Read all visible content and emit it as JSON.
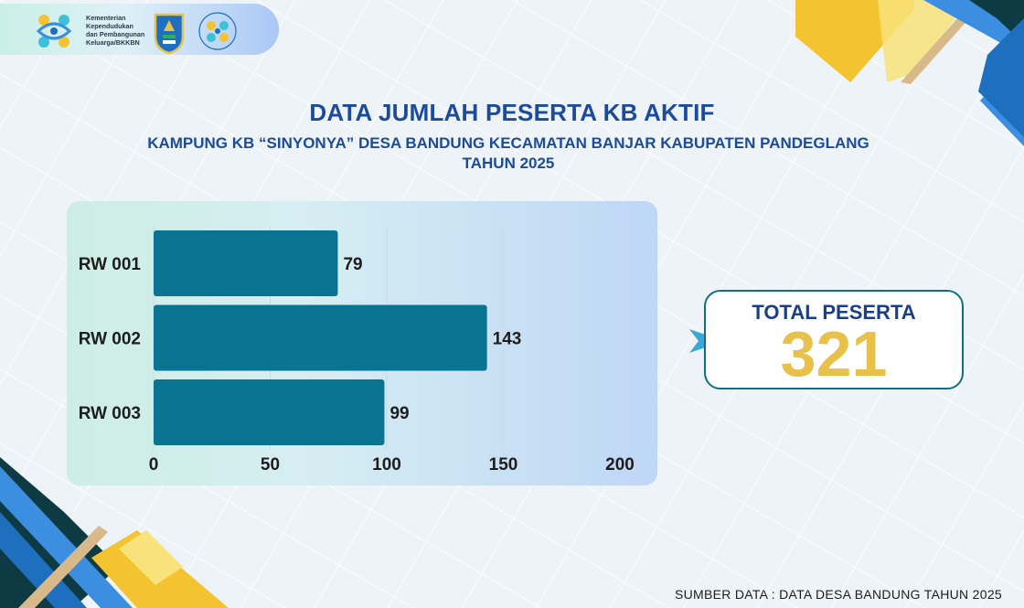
{
  "header": {
    "ministry_lines": [
      "Kementerian",
      "Kependudukan",
      "dan Pembangunan",
      "Keluarga/BKKBN"
    ],
    "logo_icons": [
      "bkkbn-logo-icon",
      "pandeglang-emblem-icon",
      "balai-penyuluhan-kb-logo-icon"
    ]
  },
  "title": "DATA JUMLAH PESERTA KB AKTIF",
  "subtitle_line1": "KAMPUNG KB  “SINYONYA” DESA BANDUNG KECAMATAN BANJAR KABUPATEN PANDEGLANG",
  "subtitle_line2": "TAHUN 2025",
  "chart_data": {
    "type": "bar",
    "orientation": "horizontal",
    "categories": [
      "RW 001",
      "RW 002",
      "RW 003"
    ],
    "values": [
      79,
      143,
      99
    ],
    "xlim": [
      0,
      200
    ],
    "xticks": [
      0,
      50,
      100,
      150,
      200
    ],
    "grid": true,
    "bar_color": "#087491",
    "title": "",
    "xlabel": "",
    "ylabel": ""
  },
  "total": {
    "label": "TOTAL PESERTA",
    "value": "321"
  },
  "source": "SUMBER DATA : DATA DESA BANDUNG TAHUN 2025",
  "colors": {
    "title": "#1b4b9a",
    "accent_yellow": "#f4c430",
    "accent_blue": "#3b8ee0",
    "dark_teal": "#0e3b43",
    "total_value": "#e8c14a"
  }
}
